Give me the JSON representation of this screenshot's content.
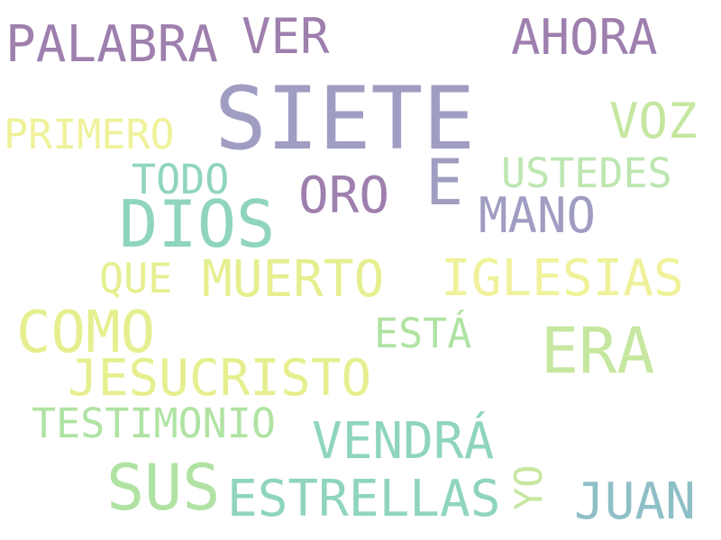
{
  "words": [
    {
      "text": "SIETE",
      "color": "#a09dc3"
    },
    {
      "text": "DIOS",
      "color": "#8fd5bd"
    },
    {
      "text": "ERA",
      "color": "#c6e7a0"
    },
    {
      "text": "SUS",
      "color": "#b0e3a3"
    },
    {
      "text": "COMO",
      "color": "#e6ef8f"
    },
    {
      "text": "PALABRA",
      "color": "#9e7fae"
    },
    {
      "text": "AHORA",
      "color": "#9e7fae"
    },
    {
      "text": "VER",
      "color": "#9e7fae"
    },
    {
      "text": "E",
      "color": "#a09dc3"
    },
    {
      "text": "ORO",
      "color": "#9e7fae"
    },
    {
      "text": "MANO",
      "color": "#a09dc3"
    },
    {
      "text": "VOZ",
      "color": "#c6e7a0"
    },
    {
      "text": "PRIMERO",
      "color": "#eff29a"
    },
    {
      "text": "TODO",
      "color": "#8fd5bd"
    },
    {
      "text": "USTEDES",
      "color": "#bde6b0"
    },
    {
      "text": "QUE",
      "color": "#e6ef8f"
    },
    {
      "text": "MUERTO",
      "color": "#e6ef8f"
    },
    {
      "text": "IGLESIAS",
      "color": "#eff29a"
    },
    {
      "text": "ESTÁ",
      "color": "#b0e3a3"
    },
    {
      "text": "JESUCRISTO",
      "color": "#e6ef8f"
    },
    {
      "text": "TESTIMONIO",
      "color": "#b0e3a3"
    },
    {
      "text": "VENDRÁ",
      "color": "#8fd5bd"
    },
    {
      "text": "YO",
      "color": "#c6e7a0"
    },
    {
      "text": "ESTRELLAS",
      "color": "#8fd5bd"
    },
    {
      "text": "JUAN",
      "color": "#8fbfc6"
    }
  ]
}
